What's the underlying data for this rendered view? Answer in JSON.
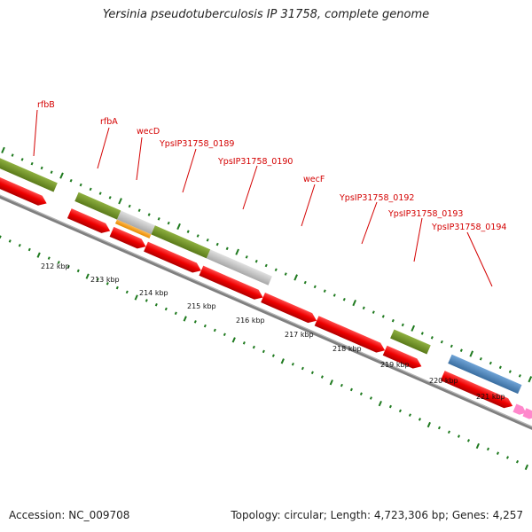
{
  "title": "Yersinia pseudotuberculosis IP 31758, complete genome",
  "footer": {
    "accession": "Accession: NC_009708",
    "topology": "Topology: circular; Length: 4,723,306 bp; Genes: 4,257"
  },
  "colors": {
    "backbone": "#808080",
    "gene_red": "#ee0000",
    "olive": "#6b8e23",
    "gray": "#c0c0c0",
    "orange": "#ff9900",
    "blue": "#4682b4",
    "pink": "#ff88cc",
    "tick_green": "#1f7a1f",
    "label_red": "#d40000"
  },
  "gene_labels": [
    {
      "text": "rfbB"
    },
    {
      "text": "rfbA"
    },
    {
      "text": "wecD"
    },
    {
      "text": "YpsIP31758_0189"
    },
    {
      "text": "YpsIP31758_0190"
    },
    {
      "text": "wecF"
    },
    {
      "text": "YpsIP31758_0192"
    },
    {
      "text": "YpsIP31758_0193"
    },
    {
      "text": "YpsIP31758_0194"
    }
  ],
  "kbp_labels": [
    "212 kbp",
    "213 kbp",
    "214 kbp",
    "215 kbp",
    "216 kbp",
    "217 kbp",
    "218 kbp",
    "219 kbp",
    "220 kbp",
    "221 kbp"
  ]
}
